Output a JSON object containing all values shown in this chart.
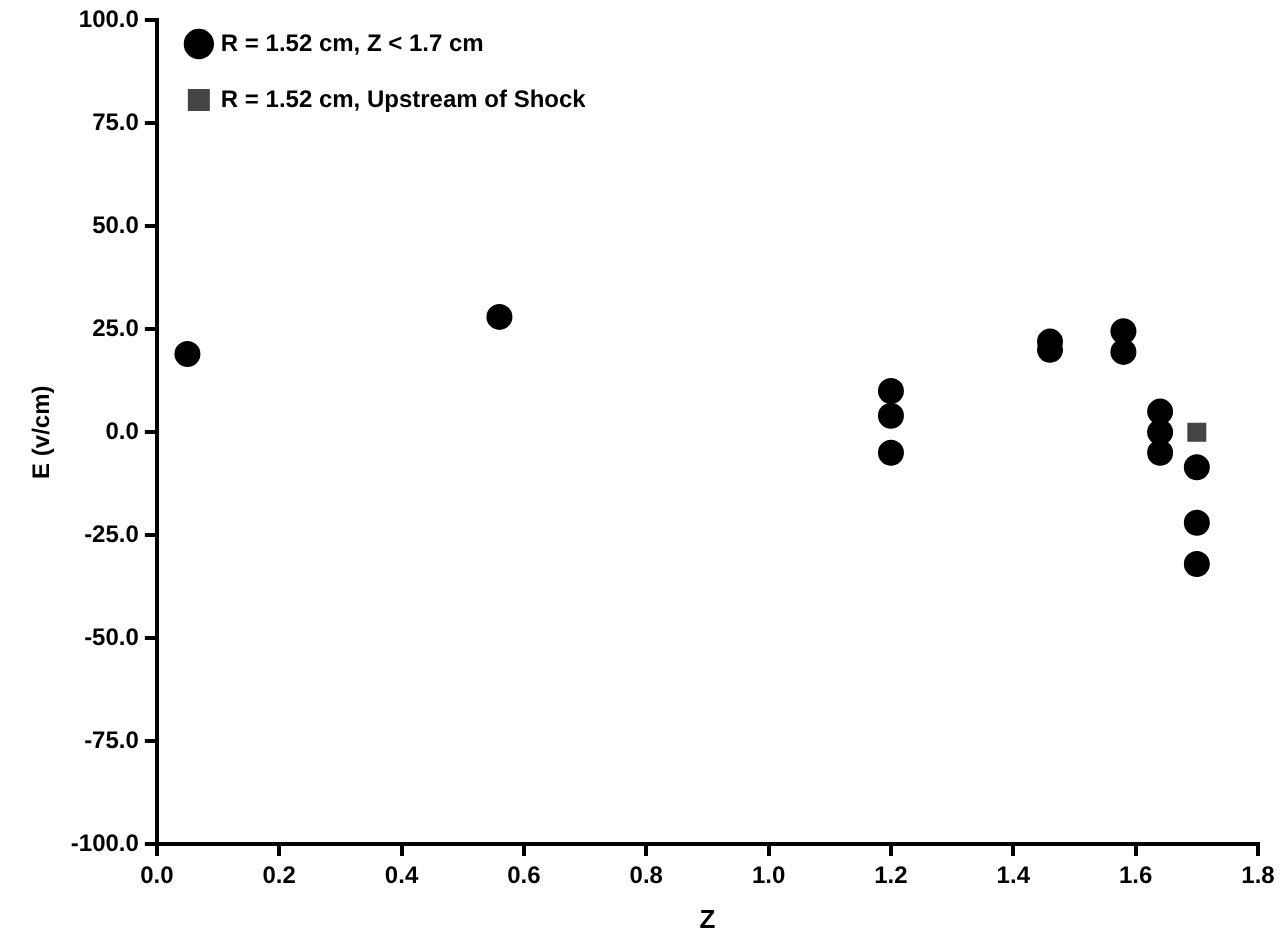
{
  "chart_data": {
    "type": "scatter",
    "xlabel": "Z",
    "ylabel": "E (v/cm)",
    "xlim": [
      0,
      1.8
    ],
    "ylim": [
      -100,
      100
    ],
    "xticks": [
      {
        "value": 0,
        "label": "0.0"
      },
      {
        "value": 0.2,
        "label": "0.2"
      },
      {
        "value": 0.4,
        "label": "0.4"
      },
      {
        "value": 0.6,
        "label": "0.6"
      },
      {
        "value": 0.8,
        "label": "0.8"
      },
      {
        "value": 1,
        "label": "1.0"
      },
      {
        "value": 1.2,
        "label": "1.2"
      },
      {
        "value": 1.4,
        "label": "1.4"
      },
      {
        "value": 1.6,
        "label": "1.6"
      },
      {
        "value": 1.8,
        "label": "1.8"
      }
    ],
    "yticks": [
      {
        "value": -100,
        "label": "-100.0"
      },
      {
        "value": -75,
        "label": "-75.0"
      },
      {
        "value": -50,
        "label": "-50.0"
      },
      {
        "value": -25,
        "label": "-25.0"
      },
      {
        "value": 0,
        "label": "0.0"
      },
      {
        "value": 25,
        "label": "25.0"
      },
      {
        "value": 50,
        "label": "50.0"
      },
      {
        "value": 75,
        "label": "75.0"
      },
      {
        "value": 100,
        "label": "100.0"
      }
    ],
    "grid": false,
    "legend": "top",
    "series": [
      {
        "name": "R = 1.52 cm, Z < 1.7 cm",
        "color": "#000000",
        "marker": "circle",
        "x": [
          0.05,
          0.56,
          1.2,
          1.2,
          1.2,
          1.46,
          1.46,
          1.58,
          1.58,
          1.64,
          1.64,
          1.64,
          1.7,
          1.7,
          1.7
        ],
        "values": [
          19,
          28,
          10,
          4,
          -5,
          22,
          20,
          24.5,
          19.5,
          5,
          0,
          -5,
          -8.5,
          -22,
          -32
        ]
      },
      {
        "name": "R = 1.52 cm, Upstream of Shock",
        "color": "#444444",
        "marker": "square",
        "x": [
          1.7
        ],
        "values": [
          0
        ]
      }
    ]
  }
}
